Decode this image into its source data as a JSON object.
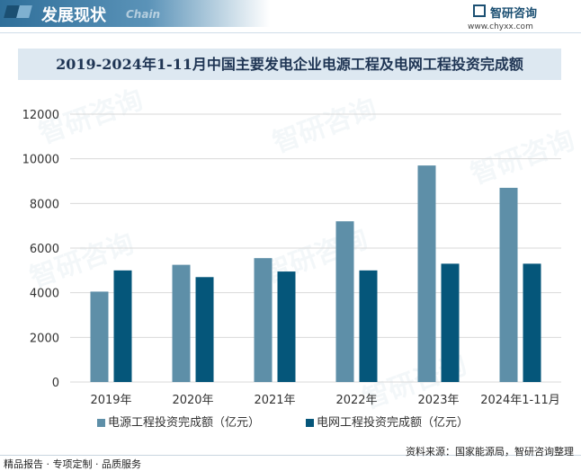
{
  "header": {
    "section_title": "发展现状",
    "section_subtitle": "Chain",
    "brand_name": "智研咨询",
    "brand_url": "www.chyxx.com"
  },
  "colors": {
    "series1": "#5e8fa8",
    "series2": "#05567a",
    "header_band": "#2f6f9a",
    "title_box": "#dde8f1"
  },
  "chart_data": {
    "type": "bar",
    "title": "2019-2024年1-11月中国主要发电企业电源工程及电网工程投资完成额",
    "categories": [
      "2019年",
      "2020年",
      "2021年",
      "2022年",
      "2023年",
      "2024年1-11月"
    ],
    "series": [
      {
        "name": "电源工程投资完成额（亿元）",
        "values": [
          4050,
          5250,
          5550,
          7200,
          9700,
          8700
        ]
      },
      {
        "name": "电网工程投资完成额（亿元）",
        "values": [
          5000,
          4700,
          4950,
          5000,
          5300,
          5300
        ]
      }
    ],
    "ylim": [
      0,
      12000
    ],
    "yticks": [
      0,
      2000,
      4000,
      6000,
      8000,
      10000,
      12000
    ],
    "grid": true,
    "legend_position": "bottom"
  },
  "footer": {
    "left_text": "精品报告 · 专项定制 · 品质服务",
    "source_text": "资料来源：国家能源局，智研咨询整理"
  }
}
